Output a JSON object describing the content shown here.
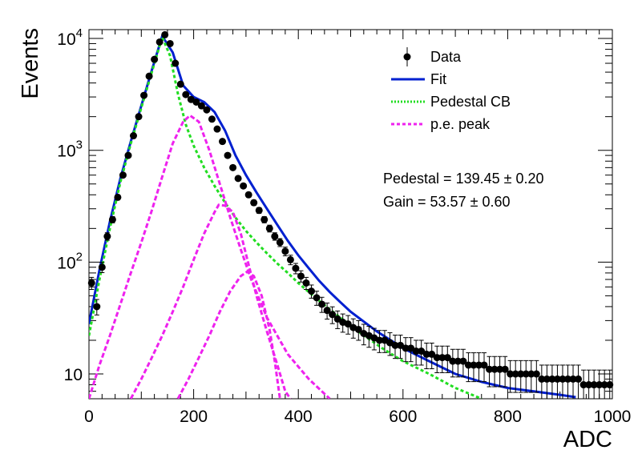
{
  "chart_data": {
    "type": "scatter",
    "xlabel": "ADC",
    "ylabel": "Events",
    "xlim": [
      0,
      1000
    ],
    "ylim": [
      6,
      12000
    ],
    "yscale": "log",
    "grid": false,
    "legend_position": "top-right",
    "x_ticks": [
      "0",
      "200",
      "400",
      "600",
      "800",
      "1000"
    ],
    "y_ticks": [
      {
        "value": 10,
        "base": "10",
        "exp": ""
      },
      {
        "value": 100,
        "base": "10",
        "exp": "2"
      },
      {
        "value": 1000,
        "base": "10",
        "exp": "3"
      },
      {
        "value": 10000,
        "base": "10",
        "exp": "4"
      }
    ],
    "legend": [
      {
        "label": "Data",
        "style": "marker",
        "color": "#000000"
      },
      {
        "label": "Fit",
        "style": "solid",
        "color": "#0020d0"
      },
      {
        "label": "Pedestal CB",
        "style": "dotted",
        "color": "#22dd22"
      },
      {
        "label": "p.e. peak",
        "style": "dashed",
        "color": "#ee22ee"
      }
    ],
    "annotations": [
      {
        "text": "Pedestal = 139.45 ± 0.20"
      },
      {
        "text": "Gain = 53.57 ± 0.60"
      }
    ],
    "series": [
      {
        "name": "Data",
        "color": "#000000",
        "points": [
          [
            5,
            65
          ],
          [
            15,
            40
          ],
          [
            25,
            90
          ],
          [
            35,
            170
          ],
          [
            45,
            240
          ],
          [
            55,
            380
          ],
          [
            65,
            600
          ],
          [
            75,
            900
          ],
          [
            85,
            1350
          ],
          [
            95,
            2000
          ],
          [
            105,
            3100
          ],
          [
            115,
            4600
          ],
          [
            125,
            6500
          ],
          [
            135,
            9300
          ],
          [
            145,
            10800
          ],
          [
            155,
            9000
          ],
          [
            165,
            6000
          ],
          [
            175,
            3900
          ],
          [
            185,
            3150
          ],
          [
            195,
            2850
          ],
          [
            205,
            2700
          ],
          [
            215,
            2500
          ],
          [
            225,
            2300
          ],
          [
            235,
            1900
          ],
          [
            245,
            1550
          ],
          [
            255,
            1200
          ],
          [
            265,
            900
          ],
          [
            275,
            700
          ],
          [
            285,
            560
          ],
          [
            295,
            480
          ],
          [
            305,
            400
          ],
          [
            315,
            340
          ],
          [
            325,
            290
          ],
          [
            335,
            240
          ],
          [
            345,
            200
          ],
          [
            355,
            170
          ],
          [
            365,
            150
          ],
          [
            375,
            125
          ],
          [
            385,
            105
          ],
          [
            395,
            88
          ],
          [
            405,
            75
          ],
          [
            415,
            65
          ],
          [
            425,
            55
          ],
          [
            435,
            48
          ],
          [
            445,
            42
          ],
          [
            455,
            37
          ],
          [
            465,
            34
          ],
          [
            475,
            31
          ],
          [
            485,
            29
          ],
          [
            495,
            28
          ],
          [
            505,
            26
          ],
          [
            515,
            25
          ],
          [
            525,
            23
          ],
          [
            535,
            22
          ],
          [
            545,
            21
          ],
          [
            555,
            20
          ],
          [
            565,
            20
          ],
          [
            575,
            19
          ],
          [
            585,
            18
          ],
          [
            595,
            18
          ],
          [
            605,
            17
          ],
          [
            615,
            17
          ],
          [
            625,
            16
          ],
          [
            635,
            16
          ],
          [
            645,
            15
          ],
          [
            655,
            15
          ],
          [
            665,
            14
          ],
          [
            675,
            14
          ],
          [
            685,
            14
          ],
          [
            695,
            13
          ],
          [
            705,
            13
          ],
          [
            715,
            13
          ],
          [
            725,
            12
          ],
          [
            735,
            12
          ],
          [
            745,
            12
          ],
          [
            755,
            12
          ],
          [
            765,
            11
          ],
          [
            775,
            11
          ],
          [
            785,
            11
          ],
          [
            795,
            11
          ],
          [
            805,
            10
          ],
          [
            815,
            10
          ],
          [
            825,
            10
          ],
          [
            835,
            10
          ],
          [
            845,
            10
          ],
          [
            855,
            10
          ],
          [
            865,
            9
          ],
          [
            875,
            9
          ],
          [
            885,
            9
          ],
          [
            895,
            9
          ],
          [
            905,
            9
          ],
          [
            915,
            9
          ],
          [
            925,
            9
          ],
          [
            935,
            9
          ],
          [
            945,
            8
          ],
          [
            955,
            8
          ],
          [
            965,
            8
          ],
          [
            975,
            8
          ],
          [
            985,
            8
          ],
          [
            995,
            8
          ]
        ]
      },
      {
        "name": "Fit",
        "color": "#0020d0",
        "points": [
          [
            0,
            28
          ],
          [
            20,
            85
          ],
          [
            40,
            230
          ],
          [
            60,
            560
          ],
          [
            80,
            1200
          ],
          [
            100,
            2500
          ],
          [
            120,
            5200
          ],
          [
            140,
            10500
          ],
          [
            160,
            7500
          ],
          [
            180,
            3800
          ],
          [
            200,
            3000
          ],
          [
            220,
            2700
          ],
          [
            240,
            2200
          ],
          [
            260,
            1500
          ],
          [
            280,
            900
          ],
          [
            300,
            600
          ],
          [
            320,
            420
          ],
          [
            340,
            300
          ],
          [
            360,
            215
          ],
          [
            380,
            155
          ],
          [
            400,
            115
          ],
          [
            420,
            88
          ],
          [
            440,
            68
          ],
          [
            460,
            54
          ],
          [
            480,
            44
          ],
          [
            500,
            36
          ],
          [
            550,
            24
          ],
          [
            600,
            17
          ],
          [
            650,
            13
          ],
          [
            700,
            10
          ],
          [
            750,
            8.5
          ],
          [
            800,
            7.5
          ],
          [
            850,
            7
          ],
          [
            900,
            6.5
          ],
          [
            930,
            6.2
          ]
        ]
      },
      {
        "name": "Pedestal CB",
        "color": "#22dd22",
        "points": [
          [
            0,
            22
          ],
          [
            20,
            70
          ],
          [
            40,
            200
          ],
          [
            60,
            520
          ],
          [
            80,
            1150
          ],
          [
            100,
            2400
          ],
          [
            120,
            5000
          ],
          [
            140,
            10300
          ],
          [
            155,
            7000
          ],
          [
            170,
            3200
          ],
          [
            185,
            1700
          ],
          [
            200,
            1100
          ],
          [
            220,
            700
          ],
          [
            240,
            480
          ],
          [
            260,
            340
          ],
          [
            280,
            250
          ],
          [
            300,
            190
          ],
          [
            320,
            150
          ],
          [
            340,
            120
          ],
          [
            360,
            97
          ],
          [
            380,
            80
          ],
          [
            400,
            65
          ],
          [
            440,
            45
          ],
          [
            480,
            32
          ],
          [
            520,
            23
          ],
          [
            560,
            17
          ],
          [
            600,
            13
          ],
          [
            650,
            10
          ],
          [
            700,
            7.5
          ],
          [
            750,
            6
          ]
        ]
      },
      {
        "name": "p.e. peak 1",
        "color": "#ee22ee",
        "points": [
          [
            0,
            6
          ],
          [
            20,
            12
          ],
          [
            40,
            22
          ],
          [
            60,
            42
          ],
          [
            80,
            80
          ],
          [
            100,
            150
          ],
          [
            120,
            290
          ],
          [
            140,
            580
          ],
          [
            160,
            1150
          ],
          [
            180,
            1800
          ],
          [
            193,
            2050
          ],
          [
            210,
            1800
          ],
          [
            230,
            1000
          ],
          [
            250,
            500
          ],
          [
            270,
            250
          ],
          [
            290,
            130
          ],
          [
            310,
            70
          ],
          [
            340,
            32
          ],
          [
            380,
            15
          ],
          [
            420,
            9
          ],
          [
            460,
            6
          ]
        ]
      },
      {
        "name": "p.e. peak 2",
        "color": "#ee22ee",
        "points": [
          [
            80,
            6
          ],
          [
            100,
            9
          ],
          [
            120,
            14
          ],
          [
            140,
            22
          ],
          [
            160,
            36
          ],
          [
            180,
            60
          ],
          [
            200,
            105
          ],
          [
            220,
            180
          ],
          [
            240,
            280
          ],
          [
            248,
            325
          ],
          [
            260,
            320
          ],
          [
            275,
            280
          ],
          [
            290,
            180
          ],
          [
            305,
            95
          ],
          [
            320,
            50
          ],
          [
            340,
            24
          ],
          [
            360,
            12
          ],
          [
            375,
            7
          ],
          [
            385,
            6
          ]
        ]
      },
      {
        "name": "p.e. peak 3",
        "color": "#ee22ee",
        "points": [
          [
            170,
            6
          ],
          [
            190,
            9
          ],
          [
            210,
            14
          ],
          [
            230,
            22
          ],
          [
            250,
            36
          ],
          [
            270,
            55
          ],
          [
            290,
            75
          ],
          [
            302,
            82
          ],
          [
            315,
            75
          ],
          [
            330,
            50
          ],
          [
            345,
            25
          ],
          [
            355,
            13
          ],
          [
            365,
            6
          ]
        ]
      }
    ]
  }
}
